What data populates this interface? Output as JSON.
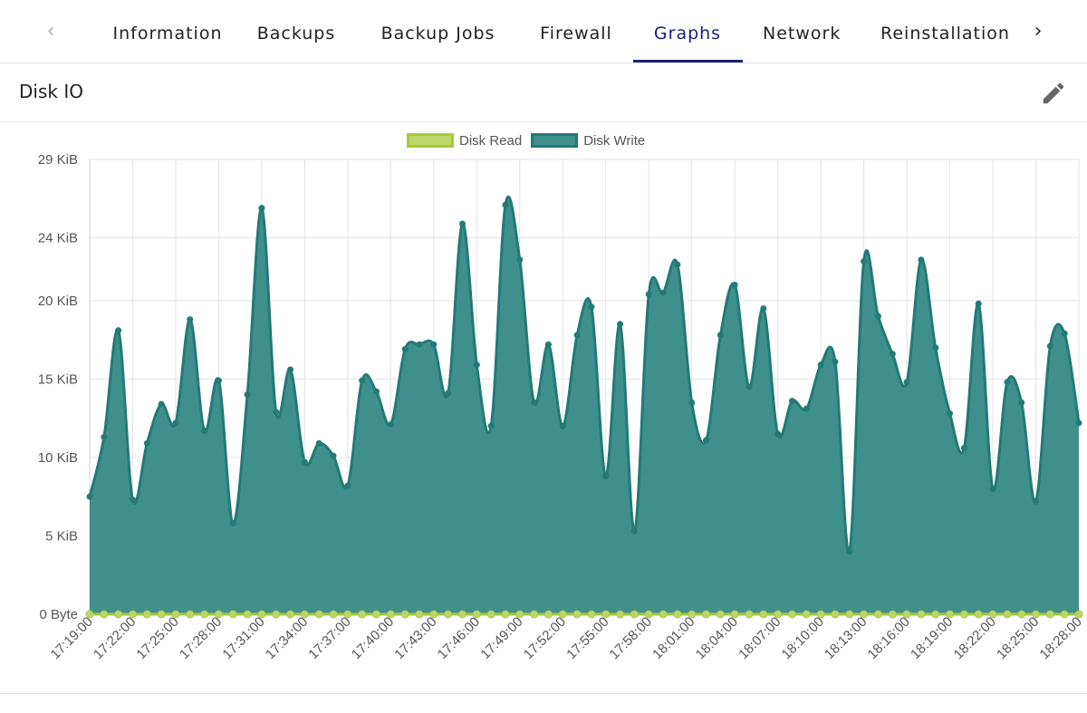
{
  "tabs": {
    "items": [
      {
        "label": "Information",
        "active": false
      },
      {
        "label": "Backups",
        "active": false
      },
      {
        "label": "Backup Jobs",
        "active": false
      },
      {
        "label": "Firewall",
        "active": false
      },
      {
        "label": "Graphs",
        "active": true
      },
      {
        "label": "Network",
        "active": false
      },
      {
        "label": "Reinstallation",
        "active": false
      }
    ],
    "prev_icon": "chevron-left-icon",
    "next_icon": "chevron-right-icon"
  },
  "panel": {
    "title": "Disk IO",
    "edit_icon": "pencil-icon"
  },
  "colors": {
    "accent": "#1c1f7a",
    "disk_read": "#a8c93a",
    "disk_write": "#237a77",
    "disk_write_fill": "#3f8f8c"
  },
  "chart_data": {
    "type": "area",
    "ylim": [
      0,
      29
    ],
    "y_unit": "KiB",
    "y_ticks": [
      "0 Byte",
      "5 KiB",
      "10 KiB",
      "15 KiB",
      "20 KiB",
      "24 KiB",
      "29 KiB"
    ],
    "y_tick_values": [
      0,
      5,
      10,
      15,
      20,
      24,
      29
    ],
    "x_tick_labels": [
      "17:19:00",
      "17:22:00",
      "17:25:00",
      "17:28:00",
      "17:31:00",
      "17:34:00",
      "17:37:00",
      "17:40:00",
      "17:43:00",
      "17:46:00",
      "17:49:00",
      "17:52:00",
      "17:55:00",
      "17:58:00",
      "18:01:00",
      "18:04:00",
      "18:07:00",
      "18:10:00",
      "18:13:00",
      "18:16:00",
      "18:19:00",
      "18:22:00",
      "18:25:00",
      "18:28:00"
    ],
    "grid": true,
    "legend_position": "top-center",
    "series": [
      {
        "name": "Disk Read",
        "values": [
          0,
          0,
          0,
          0,
          0,
          0,
          0,
          0,
          0,
          0,
          0,
          0,
          0,
          0,
          0,
          0,
          0,
          0,
          0,
          0,
          0,
          0,
          0,
          0,
          0,
          0,
          0,
          0,
          0,
          0,
          0,
          0,
          0,
          0,
          0,
          0,
          0,
          0,
          0,
          0,
          0,
          0,
          0,
          0,
          0,
          0,
          0,
          0,
          0,
          0,
          0,
          0,
          0,
          0,
          0,
          0,
          0,
          0,
          0,
          0,
          0,
          0,
          0,
          0,
          0,
          0,
          0,
          0,
          0,
          0,
          0
        ]
      },
      {
        "name": "Disk Write",
        "values": [
          7.5,
          11.3,
          18.1,
          7.3,
          10.9,
          13.4,
          12.2,
          18.8,
          11.7,
          14.9,
          5.8,
          14.0,
          25.9,
          12.9,
          15.6,
          9.7,
          10.9,
          10.1,
          8.2,
          14.9,
          14.2,
          12.1,
          16.9,
          17.2,
          17.2,
          14.1,
          24.9,
          15.9,
          12.0,
          26.1,
          22.6,
          13.5,
          17.2,
          12.0,
          17.8,
          19.6,
          8.8,
          18.5,
          5.3,
          20.4,
          20.5,
          22.3,
          13.5,
          11.1,
          17.8,
          21.0,
          14.5,
          19.5,
          11.5,
          13.6,
          13.1,
          15.9,
          16.1,
          4.0,
          22.5,
          19.0,
          16.6,
          14.8,
          22.6,
          17.0,
          12.8,
          10.6,
          19.8,
          8.0,
          14.8,
          13.5,
          7.2,
          17.1,
          17.9,
          12.2
        ]
      }
    ]
  }
}
